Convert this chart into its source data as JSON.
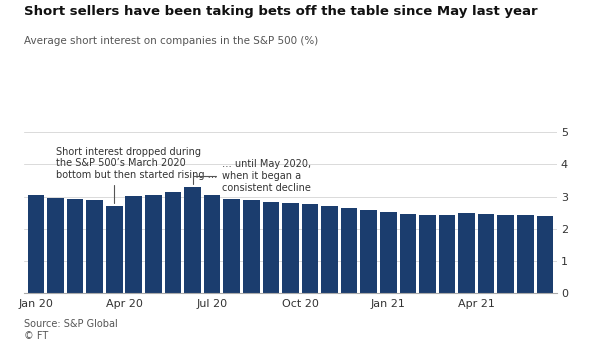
{
  "title": "Short sellers have been taking bets off the table since May last year",
  "subtitle": "Average short interest on companies in the S&P 500 (%)",
  "source": "Source: S&P Global\n© FT",
  "bar_color": "#1b3d6e",
  "background_color": "#ffffff",
  "ylim": [
    0,
    5.5
  ],
  "yticks": [
    0,
    1,
    2,
    3,
    4,
    5
  ],
  "annotation1_text": "Short interest dropped during\nthe S&P 500’s March 2020\nbottom but then started rising …",
  "annotation2_text": "… until May 2020,\nwhen it began a\nconsistent decline",
  "values": [
    3.05,
    2.97,
    2.92,
    2.88,
    2.72,
    3.02,
    3.05,
    3.15,
    3.3,
    3.05,
    2.93,
    2.88,
    2.82,
    2.8,
    2.78,
    2.72,
    2.65,
    2.58,
    2.52,
    2.46,
    2.43,
    2.42,
    2.48,
    2.45,
    2.44,
    2.42,
    2.41
  ],
  "xtick_labels": [
    "Jan 20",
    "Apr 20",
    "Jul 20",
    "Oct 20",
    "Jan 21",
    "Apr 21"
  ],
  "xtick_positions": [
    0,
    4.5,
    9,
    13.5,
    18,
    22.5
  ],
  "n_bars": 27
}
